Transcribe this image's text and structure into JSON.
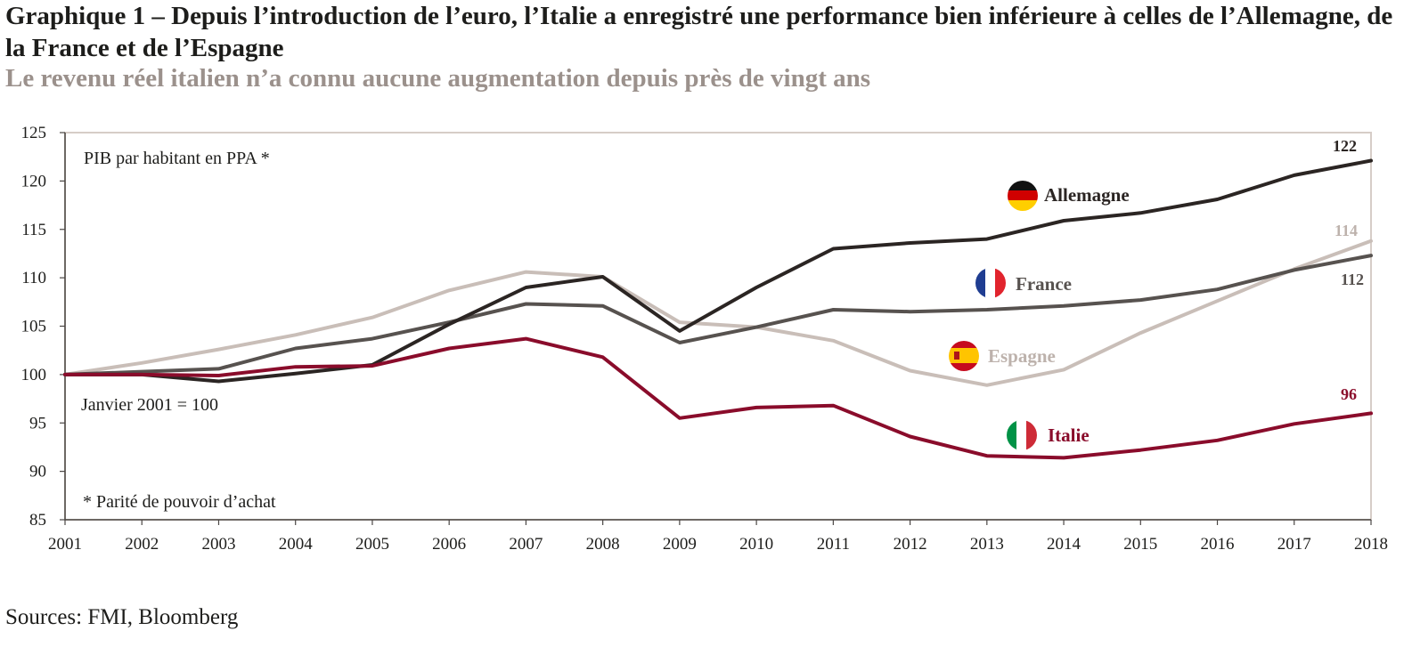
{
  "header": {
    "title": "Graphique 1 – Depuis l’introduction de l’euro, l’Italie a enregistré une performance bien inférieure à celles de l’Allemagne, de la France et de l’Espagne",
    "subtitle": "Le revenu réel italien n’a connu aucune augmentation depuis près de vingt ans"
  },
  "footer": {
    "source": "Sources: FMI, Bloomberg"
  },
  "chart_data": {
    "type": "line",
    "title": "PIB par habitant en PPA *",
    "base_note": "Janvier 2001 = 100",
    "footnote": "* Parité de pouvoir d’achat",
    "xlabel": "",
    "ylabel": "",
    "x": [
      "2001",
      "2002",
      "2003",
      "2004",
      "2005",
      "2006",
      "2007",
      "2008",
      "2009",
      "2010",
      "2011",
      "2012",
      "2013",
      "2014",
      "2015",
      "2016",
      "2017",
      "2018"
    ],
    "ylim": [
      85,
      125
    ],
    "yticks": [
      85,
      90,
      95,
      100,
      105,
      110,
      115,
      120,
      125
    ],
    "grid": false,
    "legend": "inline labels with flag icons",
    "series": [
      {
        "name": "Espagne",
        "color": "#c9beb8",
        "flag": "spain-flag-icon",
        "values": [
          100,
          101.2,
          102.6,
          104.1,
          105.9,
          108.7,
          110.6,
          110.1,
          105.4,
          104.9,
          103.5,
          100.4,
          98.9,
          100.5,
          104.3,
          107.6,
          110.9,
          113.8
        ],
        "end_label": "114"
      },
      {
        "name": "France",
        "color": "#57524f",
        "flag": "france-flag-icon",
        "values": [
          100,
          100.3,
          100.6,
          102.7,
          103.7,
          105.4,
          107.3,
          107.1,
          103.3,
          104.9,
          106.7,
          106.5,
          106.7,
          107.1,
          107.7,
          108.8,
          110.8,
          112.3
        ],
        "end_label": "112"
      },
      {
        "name": "Allemagne",
        "color": "#2b2523",
        "flag": "germany-flag-icon",
        "values": [
          100,
          100.0,
          99.3,
          100.1,
          101.0,
          105.2,
          109.0,
          110.1,
          104.5,
          109.0,
          113.0,
          113.6,
          114.0,
          115.9,
          116.7,
          118.1,
          120.6,
          122.1
        ],
        "end_label": "122"
      },
      {
        "name": "Italie",
        "color": "#8a0c2b",
        "flag": "italy-flag-icon",
        "values": [
          100,
          100.0,
          99.9,
          100.8,
          100.9,
          102.7,
          103.7,
          101.8,
          95.5,
          96.6,
          96.8,
          93.6,
          91.6,
          91.4,
          92.2,
          93.2,
          94.9,
          96.0
        ],
        "end_label": "96"
      }
    ]
  }
}
